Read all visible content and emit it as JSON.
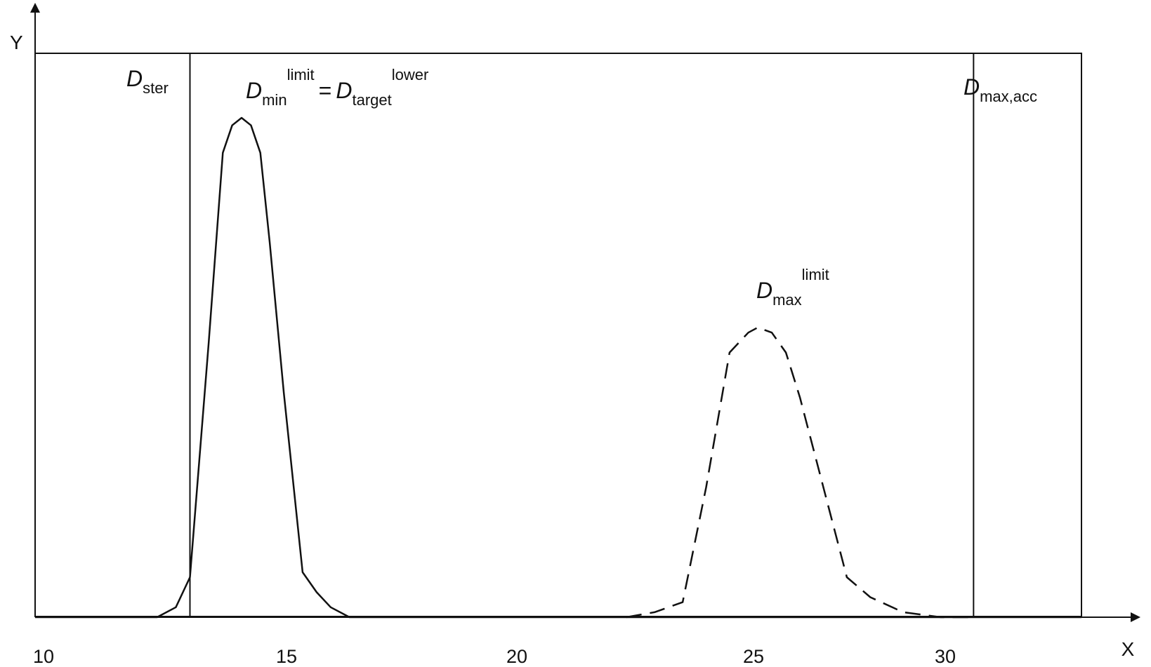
{
  "chart_data": {
    "type": "line",
    "xlabel": "X",
    "ylabel": "Y",
    "xlim": [
      10,
      32.3
    ],
    "ylim": [
      0,
      1
    ],
    "x_ticks": [
      "10",
      "15",
      "20",
      "25",
      "30"
    ],
    "grid": false,
    "series": [
      {
        "line_style": "solid",
        "color": "#111111",
        "x": [
          10,
          12.6,
          13.0,
          13.3,
          13.7,
          14.0,
          14.2,
          14.4,
          14.6,
          14.8,
          15.0,
          15.3,
          15.7,
          16.0,
          16.3,
          16.7,
          17.0,
          32.3
        ],
        "y": [
          0,
          0,
          0.02,
          0.08,
          0.55,
          0.93,
          0.985,
          1.0,
          0.985,
          0.93,
          0.75,
          0.45,
          0.09,
          0.05,
          0.02,
          0.0,
          0,
          0
        ]
      },
      {
        "line_style": "dashed",
        "color": "#111111",
        "x": [
          22.6,
          23.2,
          23.8,
          24.3,
          24.8,
          25.2,
          25.4,
          25.7,
          26.0,
          26.3,
          26.8,
          27.3,
          27.8,
          28.5,
          29.3,
          30.0
        ],
        "y": [
          0,
          0.01,
          0.03,
          0.26,
          0.53,
          0.57,
          0.58,
          0.57,
          0.53,
          0.44,
          0.26,
          0.08,
          0.04,
          0.01,
          0.0,
          0
        ]
      }
    ],
    "vertical_lines": [
      {
        "x": 13.3
      },
      {
        "x": 30.0
      }
    ],
    "annotations": {
      "d_ster": {
        "main": "D",
        "sub": "ster"
      },
      "d_min": {
        "main": "D",
        "sub": "min",
        "sup": "limit",
        "eq": "=",
        "main2": "D",
        "sub2": "target",
        "sup2": "lower"
      },
      "d_max_acc": {
        "main": "D",
        "sub": "max,acc"
      },
      "d_max_limit": {
        "main": "D",
        "sub": "max",
        "sup": "limit"
      }
    }
  }
}
